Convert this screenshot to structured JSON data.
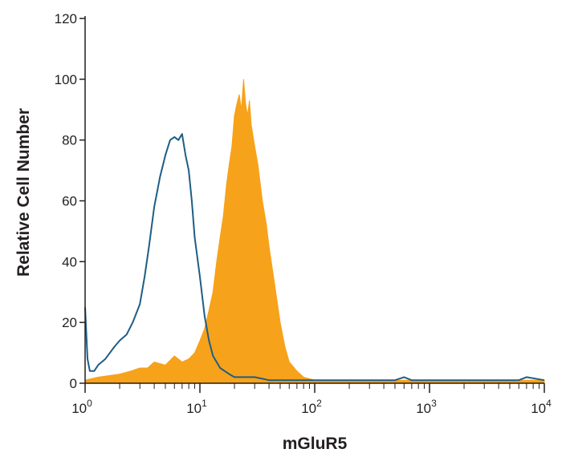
{
  "chart_data": {
    "type": "area",
    "title": "",
    "xlabel": "mGluR5",
    "ylabel": "Relative Cell Number",
    "x_scale": "log",
    "xlim": [
      1,
      10000
    ],
    "ylim": [
      0,
      120
    ],
    "grid": false,
    "legend": "none",
    "y_ticks": [
      0,
      20,
      40,
      60,
      80,
      100,
      120
    ],
    "x_ticks": [
      {
        "value": 1,
        "base": "10",
        "exp": "0"
      },
      {
        "value": 10,
        "base": "10",
        "exp": "1"
      },
      {
        "value": 100,
        "base": "10",
        "exp": "2"
      },
      {
        "value": 1000,
        "base": "10",
        "exp": "3"
      },
      {
        "value": 10000,
        "base": "10",
        "exp": "4"
      }
    ],
    "series": [
      {
        "style": "filled",
        "color": "#f7a21b",
        "x": [
          1,
          1.3,
          2,
          2.5,
          3,
          3.5,
          4,
          5,
          6,
          7,
          8,
          9,
          10,
          11,
          12,
          13,
          14,
          15,
          16,
          17,
          18,
          19,
          20,
          21,
          22,
          23,
          24,
          25,
          26,
          27,
          28,
          30,
          32,
          35,
          38,
          40,
          45,
          50,
          55,
          60,
          70,
          80,
          100,
          130,
          200,
          300,
          500,
          1000,
          2000,
          5000,
          10000
        ],
        "y": [
          1,
          2,
          3,
          4,
          5,
          5,
          7,
          6,
          9,
          7,
          8,
          10,
          14,
          18,
          24,
          30,
          40,
          48,
          55,
          65,
          72,
          78,
          88,
          92,
          95,
          90,
          100,
          92,
          88,
          93,
          85,
          78,
          72,
          60,
          52,
          45,
          32,
          20,
          12,
          7,
          4,
          2,
          1,
          1,
          1,
          1,
          1,
          1,
          1,
          1,
          1
        ]
      },
      {
        "style": "outline",
        "color": "#1f5d85",
        "x": [
          1,
          1.05,
          1.1,
          1.2,
          1.3,
          1.5,
          1.8,
          2,
          2.3,
          2.6,
          3,
          3.3,
          3.6,
          4,
          4.5,
          5,
          5.5,
          6,
          6.5,
          7,
          7.5,
          8,
          8.5,
          9,
          10,
          11,
          12,
          13,
          15,
          18,
          20,
          25,
          30,
          40,
          50,
          70,
          100,
          200,
          500,
          600,
          700,
          1000,
          2000,
          6000,
          7000,
          10000
        ],
        "y": [
          25,
          8,
          4,
          4,
          6,
          8,
          12,
          14,
          16,
          20,
          26,
          35,
          45,
          58,
          68,
          75,
          80,
          81,
          80,
          82,
          75,
          70,
          60,
          48,
          35,
          22,
          14,
          9,
          5,
          3,
          2,
          2,
          2,
          1,
          1,
          1,
          1,
          1,
          1,
          2,
          1,
          1,
          1,
          1,
          2,
          1
        ]
      }
    ]
  }
}
